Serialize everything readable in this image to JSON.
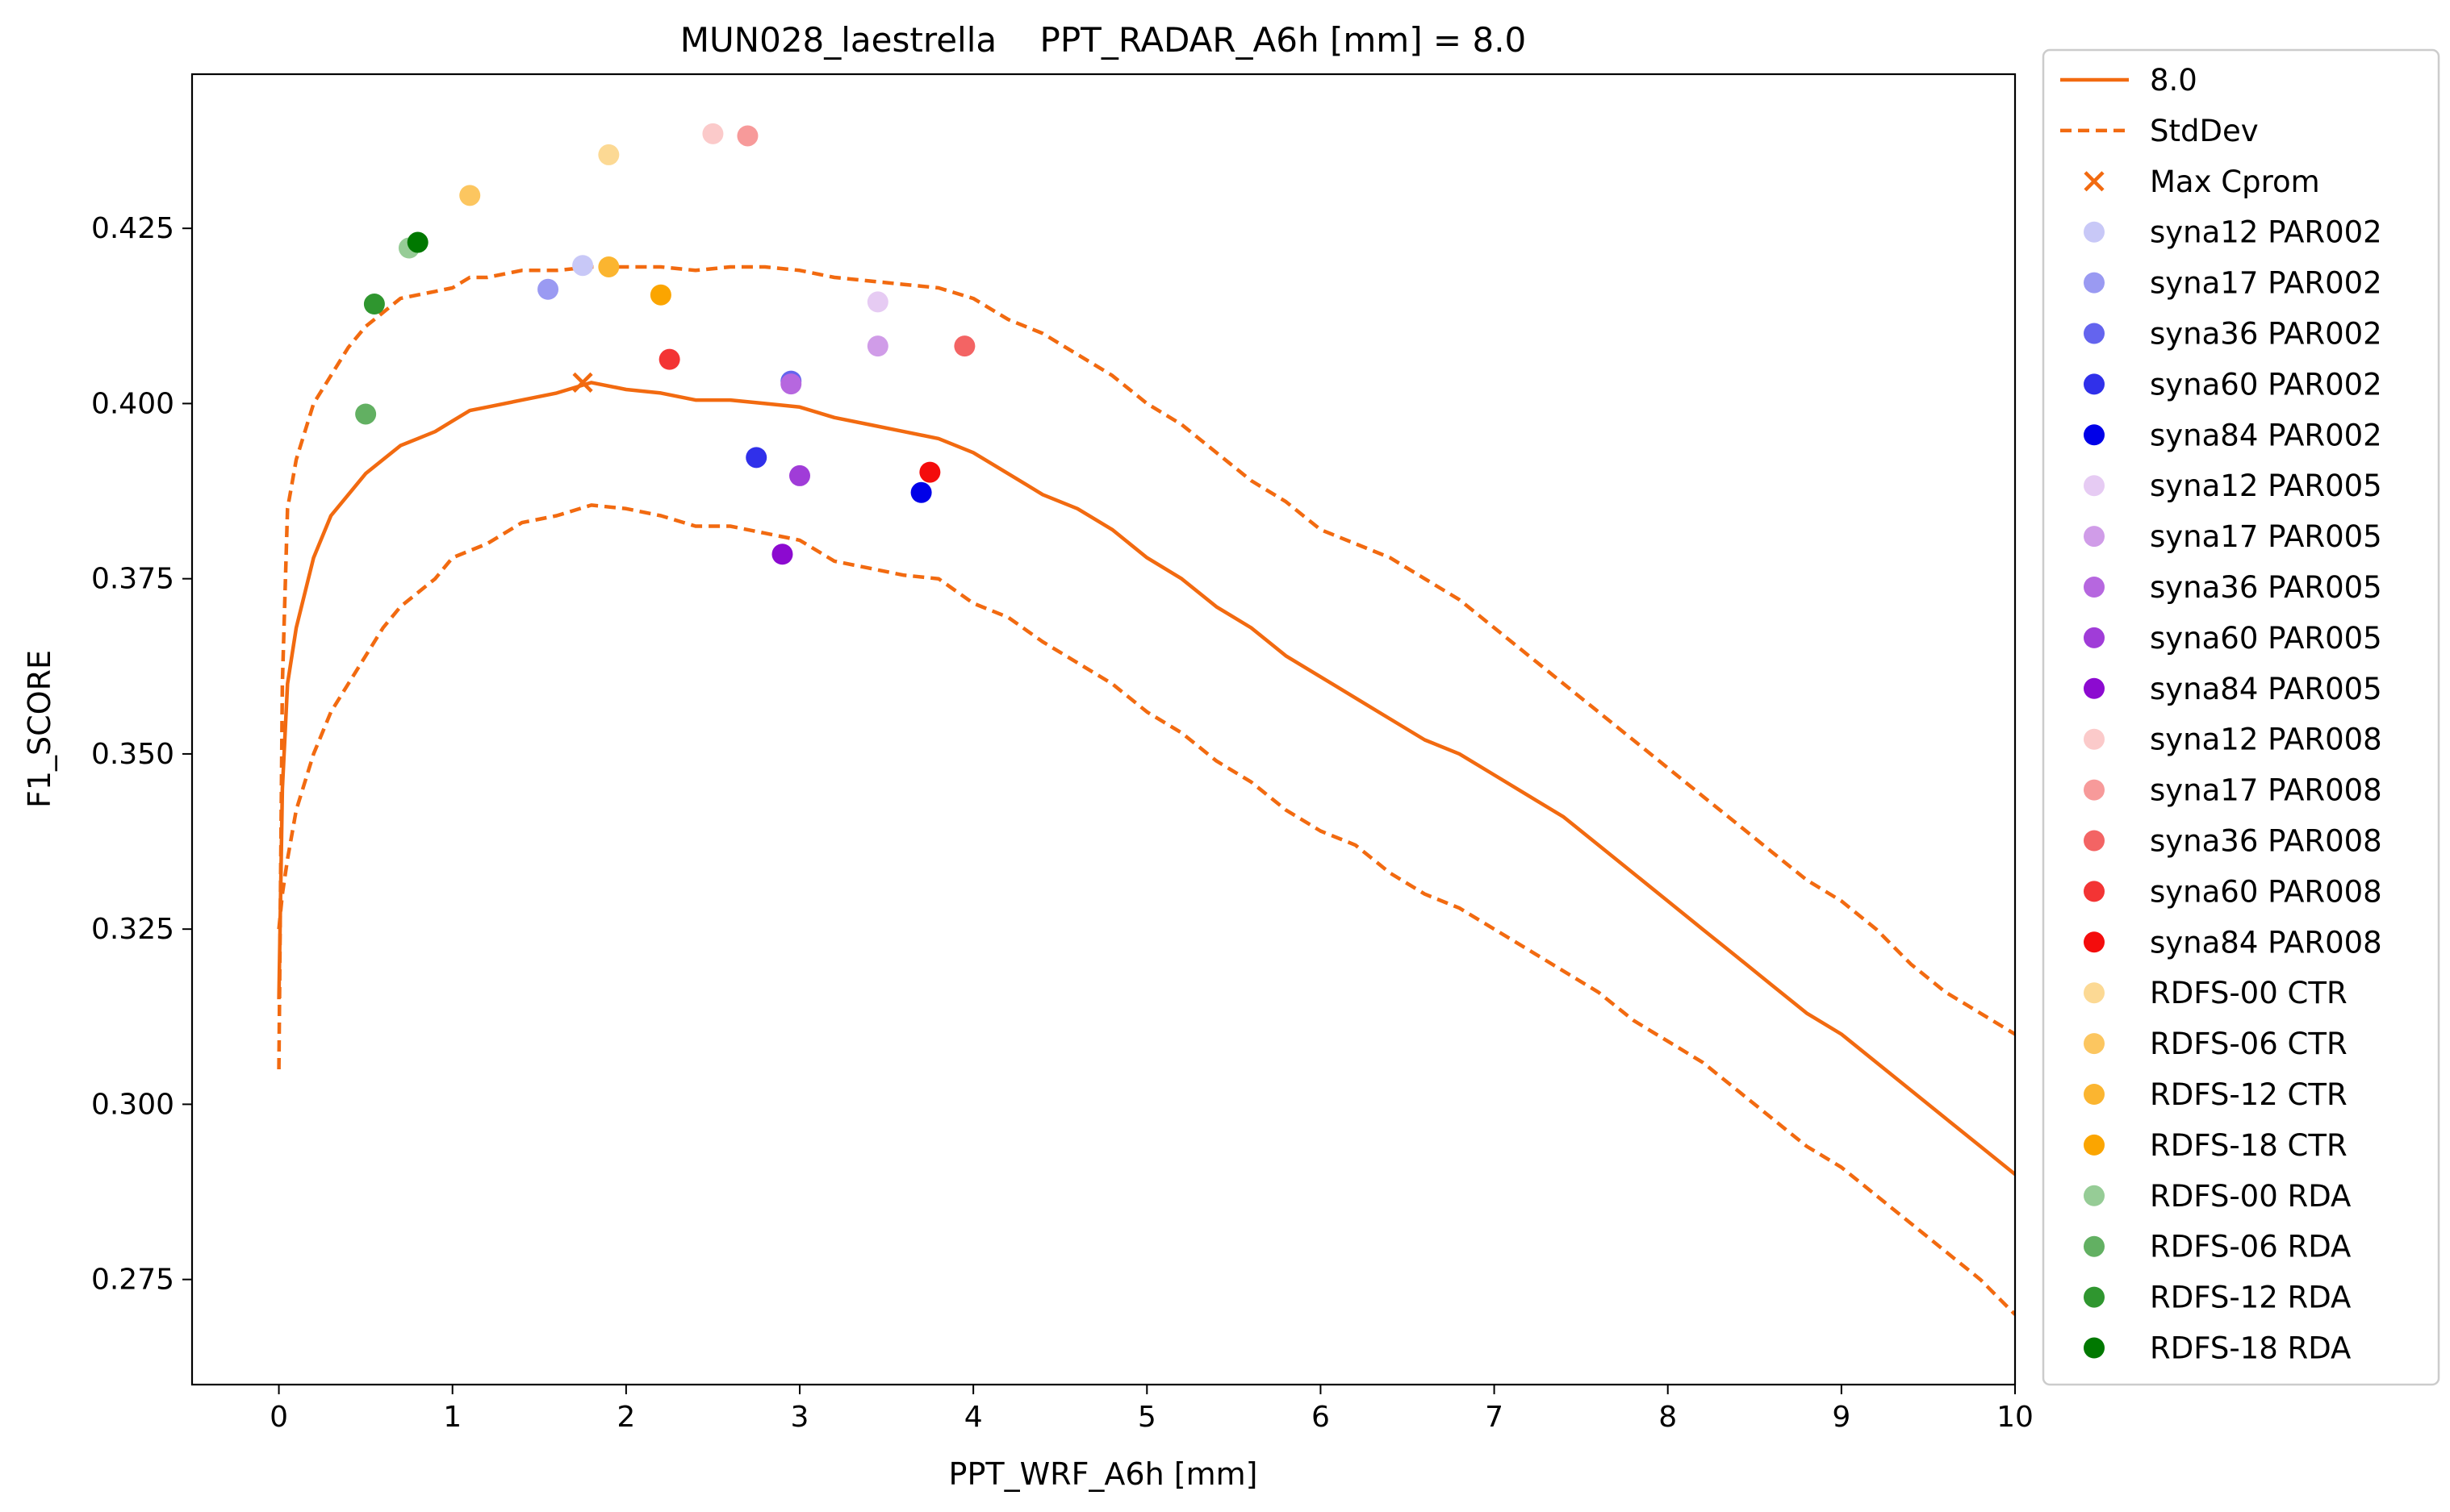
{
  "chart_data": {
    "type": "line",
    "title": "MUN028_laestrella    PPT_RADAR_A6h [mm] = 8.0",
    "xlabel": "PPT_WRF_A6h [mm]",
    "ylabel": "F1_SCORE",
    "xlim": [
      -0.5,
      10
    ],
    "ylim": [
      0.26,
      0.447
    ],
    "xticks": [
      0,
      1,
      2,
      3,
      4,
      5,
      6,
      7,
      8,
      9,
      10
    ],
    "yticks": [
      0.275,
      0.3,
      0.325,
      0.35,
      0.375,
      0.4,
      0.425
    ],
    "xtick_labels": [
      "0",
      "1",
      "2",
      "3",
      "4",
      "5",
      "6",
      "7",
      "8",
      "9",
      "10"
    ],
    "ytick_labels": [
      "0.275",
      "0.300",
      "0.325",
      "0.350",
      "0.375",
      "0.400",
      "0.425"
    ],
    "grid": false,
    "legend_position": "outside-right",
    "line_color": "#f26a10",
    "series": [
      {
        "name": "8.0",
        "style": "solid",
        "x": [
          0,
          0.02,
          0.05,
          0.1,
          0.2,
          0.3,
          0.4,
          0.5,
          0.6,
          0.7,
          0.8,
          0.9,
          1.0,
          1.1,
          1.2,
          1.4,
          1.6,
          1.8,
          2.0,
          2.2,
          2.4,
          2.6,
          2.8,
          3.0,
          3.2,
          3.4,
          3.6,
          3.8,
          4.0,
          4.2,
          4.4,
          4.6,
          4.8,
          5.0,
          5.2,
          5.4,
          5.6,
          5.8,
          6.0,
          6.2,
          6.4,
          6.6,
          6.8,
          7.0,
          7.2,
          7.4,
          7.6,
          7.8,
          8.0,
          8.2,
          8.4,
          8.6,
          8.8,
          9.0,
          9.2,
          9.4,
          9.6,
          9.8,
          10.0
        ],
        "y": [
          0.315,
          0.345,
          0.36,
          0.368,
          0.378,
          0.384,
          0.387,
          0.39,
          0.392,
          0.394,
          0.395,
          0.396,
          0.3975,
          0.399,
          0.3995,
          0.4005,
          0.4015,
          0.403,
          0.402,
          0.4015,
          0.4005,
          0.4005,
          0.4,
          0.3995,
          0.398,
          0.397,
          0.396,
          0.395,
          0.393,
          0.39,
          0.387,
          0.385,
          0.382,
          0.378,
          0.375,
          0.371,
          0.368,
          0.364,
          0.361,
          0.358,
          0.355,
          0.352,
          0.35,
          0.347,
          0.344,
          0.341,
          0.337,
          0.333,
          0.329,
          0.325,
          0.321,
          0.317,
          0.313,
          0.31,
          0.306,
          0.302,
          0.298,
          0.294,
          0.29
        ]
      },
      {
        "name": "StdDev",
        "style": "dashed",
        "x": [
          0,
          0.02,
          0.05,
          0.1,
          0.2,
          0.3,
          0.4,
          0.5,
          0.6,
          0.7,
          0.8,
          0.9,
          1.0,
          1.1,
          1.2,
          1.4,
          1.6,
          1.8,
          2.0,
          2.2,
          2.4,
          2.6,
          2.8,
          3.0,
          3.2,
          3.4,
          3.6,
          3.8,
          4.0,
          4.2,
          4.4,
          4.6,
          4.8,
          5.0,
          5.2,
          5.4,
          5.6,
          5.8,
          6.0,
          6.2,
          6.4,
          6.6,
          6.8,
          7.0,
          7.2,
          7.4,
          7.6,
          7.8,
          8.0,
          8.2,
          8.4,
          8.6,
          8.8,
          9.0,
          9.2,
          9.4,
          9.6,
          9.8,
          10.0
        ],
        "y": [
          0.305,
          0.36,
          0.385,
          0.392,
          0.4,
          0.404,
          0.408,
          0.411,
          0.413,
          0.415,
          0.4155,
          0.416,
          0.4165,
          0.418,
          0.418,
          0.419,
          0.419,
          0.4195,
          0.4195,
          0.4195,
          0.419,
          0.4195,
          0.4195,
          0.419,
          0.418,
          0.4175,
          0.417,
          0.4165,
          0.415,
          0.412,
          0.41,
          0.407,
          0.404,
          0.4,
          0.397,
          0.393,
          0.389,
          0.386,
          0.382,
          0.38,
          0.378,
          0.375,
          0.372,
          0.368,
          0.364,
          0.36,
          0.356,
          0.352,
          0.348,
          0.344,
          0.34,
          0.336,
          0.332,
          0.329,
          0.325,
          0.32,
          0.316,
          0.313,
          0.31
        ]
      },
      {
        "name": "",
        "style": "dashed",
        "x": [
          0,
          0.02,
          0.05,
          0.1,
          0.2,
          0.3,
          0.4,
          0.5,
          0.6,
          0.7,
          0.8,
          0.9,
          1.0,
          1.1,
          1.2,
          1.4,
          1.6,
          1.8,
          2.0,
          2.2,
          2.4,
          2.6,
          2.8,
          3.0,
          3.2,
          3.4,
          3.6,
          3.8,
          4.0,
          4.2,
          4.4,
          4.6,
          4.8,
          5.0,
          5.2,
          5.4,
          5.6,
          5.8,
          6.0,
          6.2,
          6.4,
          6.6,
          6.8,
          7.0,
          7.2,
          7.4,
          7.6,
          7.8,
          8.0,
          8.2,
          8.4,
          8.6,
          8.8,
          9.0,
          9.2,
          9.4,
          9.6,
          9.8,
          10.0
        ],
        "y": [
          0.325,
          0.33,
          0.335,
          0.342,
          0.35,
          0.356,
          0.36,
          0.364,
          0.368,
          0.371,
          0.373,
          0.375,
          0.378,
          0.379,
          0.38,
          0.383,
          0.384,
          0.3855,
          0.385,
          0.384,
          0.3825,
          0.3825,
          0.3815,
          0.3805,
          0.3775,
          0.3765,
          0.3755,
          0.375,
          0.3715,
          0.3695,
          0.366,
          0.363,
          0.36,
          0.356,
          0.353,
          0.349,
          0.346,
          0.342,
          0.339,
          0.337,
          0.333,
          0.33,
          0.328,
          0.325,
          0.322,
          0.319,
          0.316,
          0.312,
          0.309,
          0.306,
          0.302,
          0.298,
          0.294,
          0.291,
          0.287,
          0.283,
          0.279,
          0.275,
          0.27
        ]
      }
    ],
    "max_point": {
      "name": "Max Cprom",
      "x": 1.75,
      "y": 0.403
    },
    "points": [
      {
        "name": "syna12 PAR002",
        "x": 1.75,
        "y": 0.4197,
        "color": "#c8c8f7"
      },
      {
        "name": "syna17 PAR002",
        "x": 1.55,
        "y": 0.4163,
        "color": "#9a9af2"
      },
      {
        "name": "syna36 PAR002",
        "x": 2.95,
        "y": 0.4032,
        "color": "#6464ee"
      },
      {
        "name": "syna60 PAR002",
        "x": 2.75,
        "y": 0.3923,
        "color": "#3030ea"
      },
      {
        "name": "syna84 PAR002",
        "x": 3.7,
        "y": 0.3873,
        "color": "#0000e8"
      },
      {
        "name": "syna12 PAR005",
        "x": 3.45,
        "y": 0.4145,
        "color": "#e6cbf3"
      },
      {
        "name": "syna17 PAR005",
        "x": 3.45,
        "y": 0.4082,
        "color": "#d09ce8"
      },
      {
        "name": "syna36 PAR005",
        "x": 2.95,
        "y": 0.4028,
        "color": "#b667df"
      },
      {
        "name": "syna60 PAR005",
        "x": 3.0,
        "y": 0.3897,
        "color": "#a03cd8"
      },
      {
        "name": "syna84 PAR005",
        "x": 2.9,
        "y": 0.3785,
        "color": "#8c0ad0"
      },
      {
        "name": "syna12 PAR008",
        "x": 2.5,
        "y": 0.4385,
        "color": "#fbcaca"
      },
      {
        "name": "syna17 PAR008",
        "x": 2.7,
        "y": 0.4382,
        "color": "#f79a9a"
      },
      {
        "name": "syna36 PAR008",
        "x": 3.95,
        "y": 0.4082,
        "color": "#f36464"
      },
      {
        "name": "syna60 PAR008",
        "x": 2.25,
        "y": 0.4063,
        "color": "#f33434"
      },
      {
        "name": "syna84 PAR008",
        "x": 3.75,
        "y": 0.3902,
        "color": "#f40c0c"
      },
      {
        "name": "RDFS-00 CTR",
        "x": 1.9,
        "y": 0.4355,
        "color": "#fcd994"
      },
      {
        "name": "RDFS-06 CTR",
        "x": 1.1,
        "y": 0.4297,
        "color": "#fcc660"
      },
      {
        "name": "RDFS-12 CTR",
        "x": 1.9,
        "y": 0.4195,
        "color": "#fbb530"
      },
      {
        "name": "RDFS-18 CTR",
        "x": 2.2,
        "y": 0.4155,
        "color": "#fba500"
      },
      {
        "name": "RDFS-00 RDA",
        "x": 0.75,
        "y": 0.4222,
        "color": "#96cc96"
      },
      {
        "name": "RDFS-06 RDA",
        "x": 0.5,
        "y": 0.3985,
        "color": "#62b062"
      },
      {
        "name": "RDFS-12 RDA",
        "x": 0.55,
        "y": 0.4142,
        "color": "#2f962f"
      },
      {
        "name": "RDFS-18 RDA",
        "x": 0.8,
        "y": 0.423,
        "color": "#007800"
      }
    ]
  }
}
